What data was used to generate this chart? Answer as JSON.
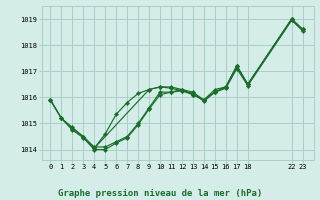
{
  "bg_color": "#d4ede8",
  "grid_color": "#aacfc8",
  "line_color": "#1a6e2a",
  "marker_color": "#1a6e2a",
  "title": "Graphe pression niveau de la mer (hPa)",
  "xlim": [
    -0.8,
    24.0
  ],
  "ylim": [
    1013.6,
    1019.5
  ],
  "yticks": [
    1014,
    1015,
    1016,
    1017,
    1018,
    1019
  ],
  "xticks": [
    0,
    1,
    2,
    3,
    4,
    5,
    6,
    7,
    8,
    9,
    10,
    11,
    12,
    13,
    14,
    15,
    16,
    17,
    18,
    22,
    23
  ],
  "xtick_labels": [
    "0",
    "1",
    "2",
    "3",
    "4",
    "5",
    "6",
    "7",
    "8",
    "9",
    "10",
    "11",
    "12",
    "13",
    "14",
    "15",
    "16",
    "17",
    "18",
    "22",
    "23"
  ],
  "series1_x": [
    0,
    1,
    2,
    3,
    4,
    5,
    6,
    7,
    8,
    9,
    10,
    11,
    12,
    13,
    14,
    15,
    16,
    17,
    18,
    22,
    23
  ],
  "series1_y": [
    1015.9,
    1015.2,
    1014.8,
    1014.5,
    1014.1,
    1014.1,
    1014.3,
    1014.5,
    1015.0,
    1015.6,
    1016.2,
    1016.2,
    1016.3,
    1016.2,
    1015.9,
    1016.3,
    1016.4,
    1017.2,
    1016.5,
    1019.0,
    1018.6
  ],
  "series2_x": [
    0,
    1,
    2,
    3,
    4,
    9,
    10,
    11,
    12,
    13,
    14,
    15,
    16,
    17,
    18,
    22,
    23
  ],
  "series2_y": [
    1015.9,
    1015.2,
    1014.85,
    1014.5,
    1014.05,
    1016.3,
    1016.4,
    1016.4,
    1016.3,
    1016.1,
    1015.9,
    1016.2,
    1016.4,
    1017.2,
    1016.5,
    1019.0,
    1018.6
  ],
  "series3_x": [
    0,
    1,
    2,
    3,
    4,
    5,
    6,
    7,
    8,
    9,
    10,
    11,
    12,
    13,
    14,
    15,
    16,
    17,
    18,
    22,
    23
  ],
  "series3_y": [
    1015.9,
    1015.2,
    1014.75,
    1014.45,
    1014.0,
    1014.0,
    1014.25,
    1014.45,
    1014.95,
    1015.55,
    1016.1,
    1016.2,
    1016.25,
    1016.15,
    1015.85,
    1016.2,
    1016.35,
    1017.1,
    1016.45,
    1018.95,
    1018.55
  ],
  "series4_x": [
    4,
    5,
    6,
    7,
    8,
    9,
    10,
    11,
    12,
    13,
    14,
    15,
    16,
    17,
    18,
    22,
    23
  ],
  "series4_y": [
    1014.05,
    1014.6,
    1015.35,
    1015.8,
    1016.15,
    1016.3,
    1016.4,
    1016.35,
    1016.25,
    1016.1,
    1015.9,
    1016.2,
    1016.4,
    1017.2,
    1016.5,
    1019.0,
    1018.6
  ]
}
